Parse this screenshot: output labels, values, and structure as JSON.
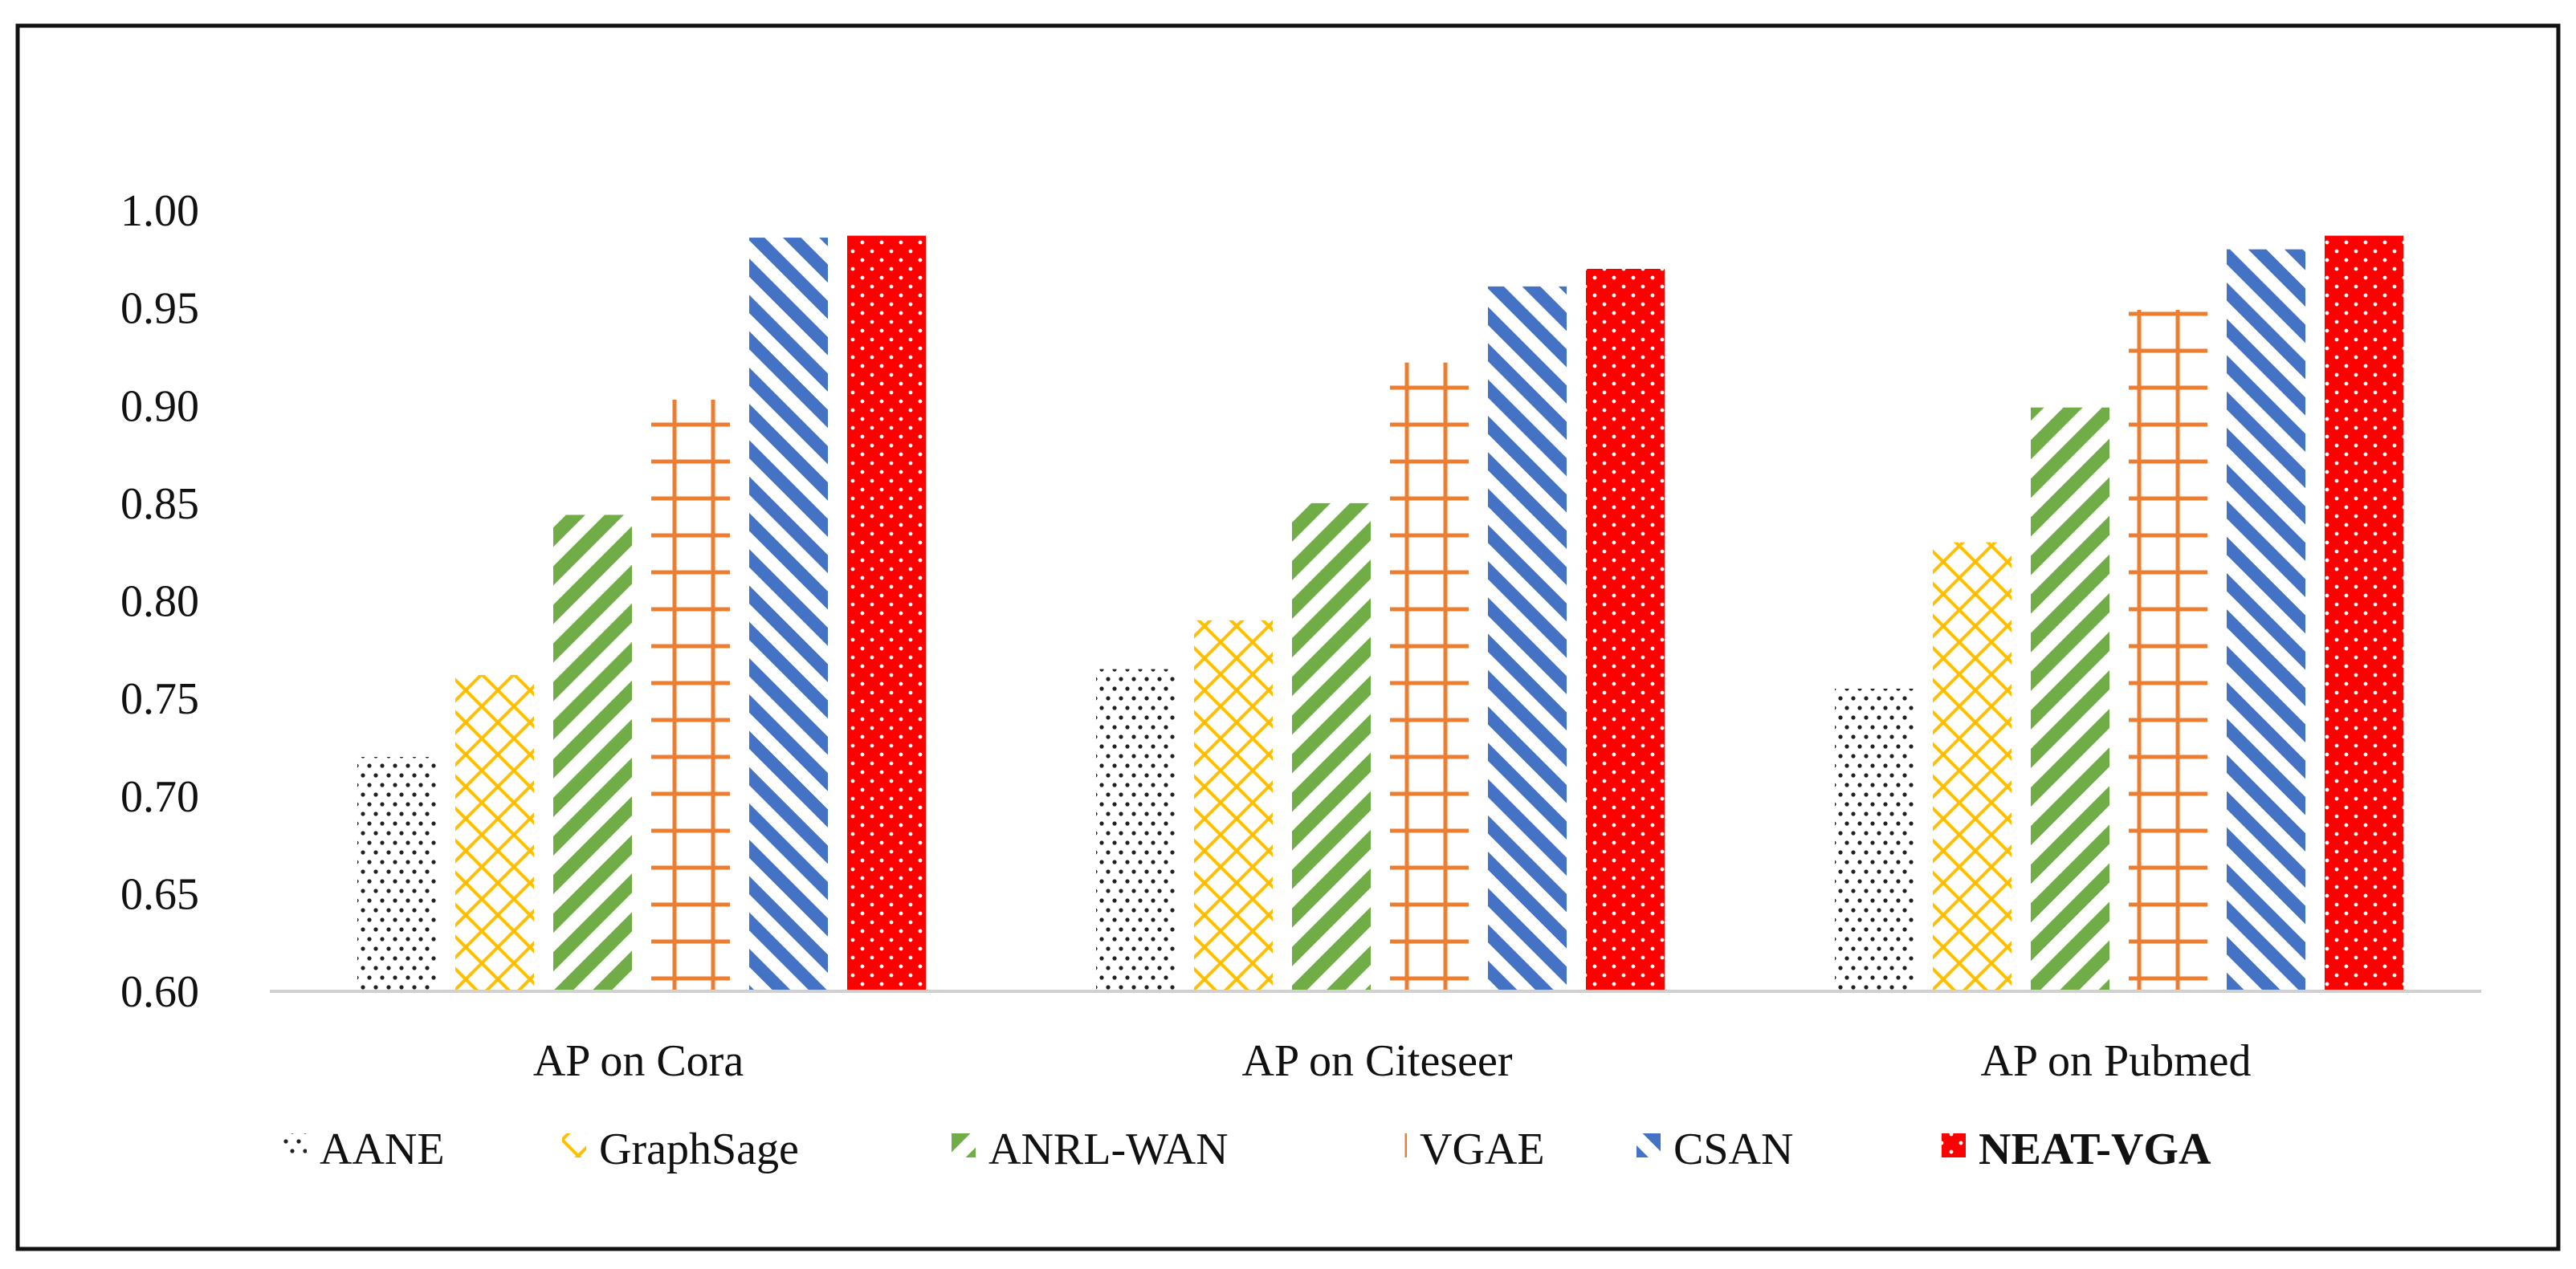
{
  "chart_data": {
    "type": "bar",
    "title": "",
    "xlabel": "",
    "ylabel": "",
    "ylim": [
      0.6,
      1.0
    ],
    "yticks": [
      "0.60",
      "0.65",
      "0.70",
      "0.75",
      "0.80",
      "0.85",
      "0.90",
      "0.95",
      "1.00"
    ],
    "grid": false,
    "legend_position": "bottom",
    "categories": [
      "AP on Cora",
      "AP on Citeseer",
      "AP on Pubmed"
    ],
    "series": [
      {
        "name": "AANE",
        "values": [
          0.72,
          0.765,
          0.755
        ],
        "color": "#222222",
        "pattern": "dots",
        "bold": false
      },
      {
        "name": "GraphSage",
        "values": [
          0.762,
          0.79,
          0.83
        ],
        "color": "#ffc000",
        "pattern": "crosshatch",
        "bold": false
      },
      {
        "name": "ANRL-WAN",
        "values": [
          0.844,
          0.85,
          0.899
        ],
        "color": "#70ad47",
        "pattern": "diagonal-up",
        "bold": false
      },
      {
        "name": "VGAE",
        "values": [
          0.903,
          0.922,
          0.949
        ],
        "color": "#ed7d31",
        "pattern": "grid",
        "bold": false
      },
      {
        "name": "CSAN",
        "values": [
          0.986,
          0.961,
          0.98
        ],
        "color": "#4472c4",
        "pattern": "diagonal-down",
        "bold": false
      },
      {
        "name": "NEAT-VGA",
        "values": [
          0.987,
          0.97,
          0.987
        ],
        "color": "#ff0000",
        "pattern": "solid-dots",
        "bold": true
      }
    ]
  }
}
